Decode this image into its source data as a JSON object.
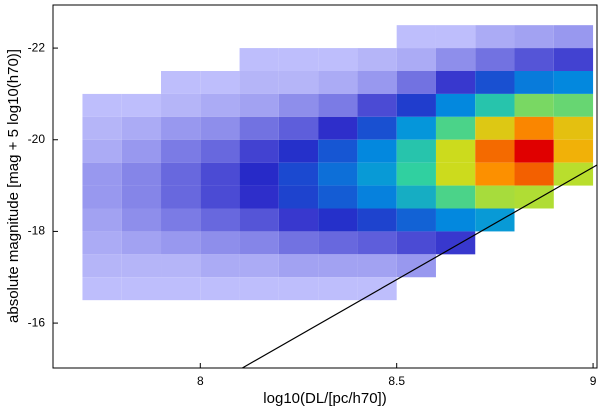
{
  "chart_data": {
    "type": "heatmap",
    "xlabel": "log10(DL/[pc/h70])",
    "ylabel": "absolute magnitude [mag + 5 log10(h70)]",
    "xlim": [
      7.625,
      9.01
    ],
    "ylim": [
      -15.02,
      -22.94
    ],
    "xticks": [
      8,
      8.5,
      9
    ],
    "yticks": [
      -22,
      -20,
      -18,
      -16
    ],
    "x_bins": [
      7.7,
      7.8,
      7.9,
      8.0,
      8.1,
      8.2,
      8.3,
      8.4,
      8.5,
      8.6,
      8.7,
      8.8,
      8.9,
      9.0
    ],
    "y_bins": [
      -22.5,
      -22.0,
      -21.5,
      -21.0,
      -20.5,
      -20.0,
      -19.5,
      -19.0,
      -18.5,
      -18.0,
      -17.5,
      -17.0,
      -16.5,
      -16.0,
      -15.5
    ],
    "z": [
      [
        0,
        0,
        0,
        0,
        0,
        0,
        0,
        0,
        0.1,
        0.1,
        0.3,
        0.4,
        0.5
      ],
      [
        0,
        0,
        0,
        0,
        0.1,
        0.1,
        0.1,
        0.2,
        0.3,
        0.6,
        0.9,
        1.2,
        1.4
      ],
      [
        0,
        0,
        0.1,
        0.1,
        0.2,
        0.2,
        0.3,
        0.5,
        0.9,
        1.5,
        2.3,
        3.0,
        3.2
      ],
      [
        0.1,
        0.1,
        0.2,
        0.3,
        0.4,
        0.6,
        0.8,
        1.3,
        2.0,
        3.2,
        4.7,
        5.8,
        5.6
      ],
      [
        0.2,
        0.3,
        0.5,
        0.6,
        0.9,
        1.1,
        1.6,
        2.3,
        3.5,
        5.3,
        7.3,
        8.6,
        7.5
      ],
      [
        0.3,
        0.5,
        0.8,
        1.0,
        1.4,
        1.8,
        2.4,
        3.2,
        4.7,
        6.8,
        8.9,
        10,
        7.9
      ],
      [
        0.5,
        0.7,
        1,
        1.3,
        1.7,
        2.2,
        2.8,
        3.6,
        5.0,
        6.8,
        8.5,
        9.0,
        6.5
      ],
      [
        0.5,
        0.7,
        1,
        1.3,
        1.6,
        2.1,
        2.5,
        3.1,
        4.1,
        5.3,
        6.3,
        6.4,
        0
      ],
      [
        0.4,
        0.6,
        0.8,
        1.0,
        1.2,
        1.5,
        1.8,
        2.1,
        2.6,
        3.2,
        3.6,
        0,
        0
      ],
      [
        0.3,
        0.4,
        0.5,
        0.6,
        0.7,
        0.9,
        1.0,
        1.1,
        1.3,
        1.5,
        0,
        0,
        0
      ],
      [
        0.2,
        0.2,
        0.2,
        0.3,
        0.3,
        0.4,
        0.4,
        0.4,
        0.5,
        0,
        0,
        0,
        0
      ],
      [
        0.1,
        0.1,
        0.1,
        0.1,
        0.1,
        0.1,
        0.1,
        0.1,
        0,
        0,
        0,
        0,
        0
      ],
      [
        0,
        0,
        0,
        0,
        0,
        0,
        0,
        0,
        0,
        0,
        0,
        0,
        0
      ],
      [
        0,
        0,
        0,
        0,
        0,
        0,
        0,
        0,
        0,
        0,
        0,
        0,
        0
      ]
    ],
    "colormap": [
      "#c8c8ff",
      "#2828c8",
      "#0090e0",
      "#30d0a0",
      "#c8e020",
      "#ffa000",
      "#e00000"
    ],
    "limit_line": {
      "x": [
        8.107,
        9.01
      ],
      "y": [
        -15.02,
        -19.45
      ],
      "color": "#000000"
    }
  }
}
